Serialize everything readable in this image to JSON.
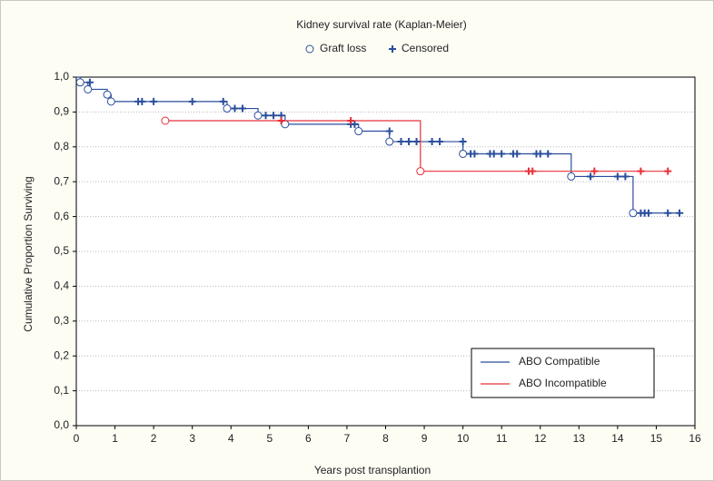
{
  "chart_data": {
    "type": "step",
    "title": "Kidney survival rate (Kaplan-Meier)",
    "markers": {
      "loss": "Graft loss",
      "censored": "Censored"
    },
    "xlabel": "Years post transplantion",
    "ylabel": "Cumulative Proportion Surviving",
    "xlim": [
      0,
      16
    ],
    "xticks": [
      0,
      1,
      2,
      3,
      4,
      5,
      6,
      7,
      8,
      9,
      10,
      11,
      12,
      13,
      14,
      15,
      16
    ],
    "ylim": [
      0,
      1
    ],
    "yticks": [
      {
        "value": 0,
        "label": "0,0"
      },
      {
        "value": 0.1,
        "label": "0,1"
      },
      {
        "value": 0.2,
        "label": "0,2"
      },
      {
        "value": 0.3,
        "label": "0,3"
      },
      {
        "value": 0.4,
        "label": "0,4"
      },
      {
        "value": 0.5,
        "label": "0,5"
      },
      {
        "value": 0.6,
        "label": "0,6"
      },
      {
        "value": 0.7,
        "label": "0,7"
      },
      {
        "value": 0.8,
        "label": "0,8"
      },
      {
        "value": 0.9,
        "label": "0,9"
      },
      {
        "value": 1,
        "label": "1,0"
      }
    ],
    "grid": true,
    "legend": "lower right",
    "series": [
      {
        "name": "ABO Compatible",
        "color": "#2a4e9c",
        "x": [
          0,
          0.1,
          0.3,
          0.8,
          0.9,
          3.9,
          4.7,
          5.4,
          7.3,
          8.1,
          10.0,
          12.8,
          14.4,
          15.7
        ],
        "values": [
          1.0,
          0.985,
          0.965,
          0.95,
          0.93,
          0.91,
          0.89,
          0.865,
          0.845,
          0.815,
          0.78,
          0.715,
          0.61,
          0.61
        ],
        "loss_x": [
          0.1,
          0.3,
          0.8,
          0.9,
          3.9,
          4.7,
          5.4,
          7.3,
          8.1,
          10.0,
          12.8,
          14.4
        ],
        "loss_y": [
          0.985,
          0.965,
          0.95,
          0.93,
          0.91,
          0.89,
          0.865,
          0.845,
          0.815,
          0.78,
          0.715,
          0.61
        ],
        "censored_x": [
          0.35,
          1.6,
          1.7,
          2.0,
          3.0,
          3.8,
          4.1,
          4.3,
          4.9,
          5.1,
          5.3,
          7.1,
          7.2,
          8.1,
          8.4,
          8.6,
          8.8,
          9.2,
          9.4,
          10.0,
          10.2,
          10.3,
          10.7,
          10.8,
          11.0,
          11.3,
          11.4,
          11.9,
          12.0,
          12.2,
          13.3,
          14.0,
          14.2,
          14.6,
          14.7,
          14.8,
          15.3,
          15.6
        ],
        "censored_y": [
          0.985,
          0.93,
          0.93,
          0.93,
          0.93,
          0.93,
          0.91,
          0.91,
          0.89,
          0.89,
          0.89,
          0.865,
          0.865,
          0.845,
          0.815,
          0.815,
          0.815,
          0.815,
          0.815,
          0.815,
          0.78,
          0.78,
          0.78,
          0.78,
          0.78,
          0.78,
          0.78,
          0.78,
          0.78,
          0.78,
          0.715,
          0.715,
          0.715,
          0.61,
          0.61,
          0.61,
          0.61,
          0.61
        ]
      },
      {
        "name": "ABO Incompatible",
        "color": "#e8303a",
        "x": [
          2.3,
          8.9,
          15.3
        ],
        "values": [
          0.875,
          0.73,
          0.73
        ],
        "loss_x": [
          2.3,
          8.9
        ],
        "loss_y": [
          0.875,
          0.73
        ],
        "censored_x": [
          5.3,
          7.1,
          11.7,
          11.8,
          13.4,
          14.6,
          15.3
        ],
        "censored_y": [
          0.875,
          0.875,
          0.73,
          0.73,
          0.73,
          0.73,
          0.73
        ]
      }
    ]
  }
}
